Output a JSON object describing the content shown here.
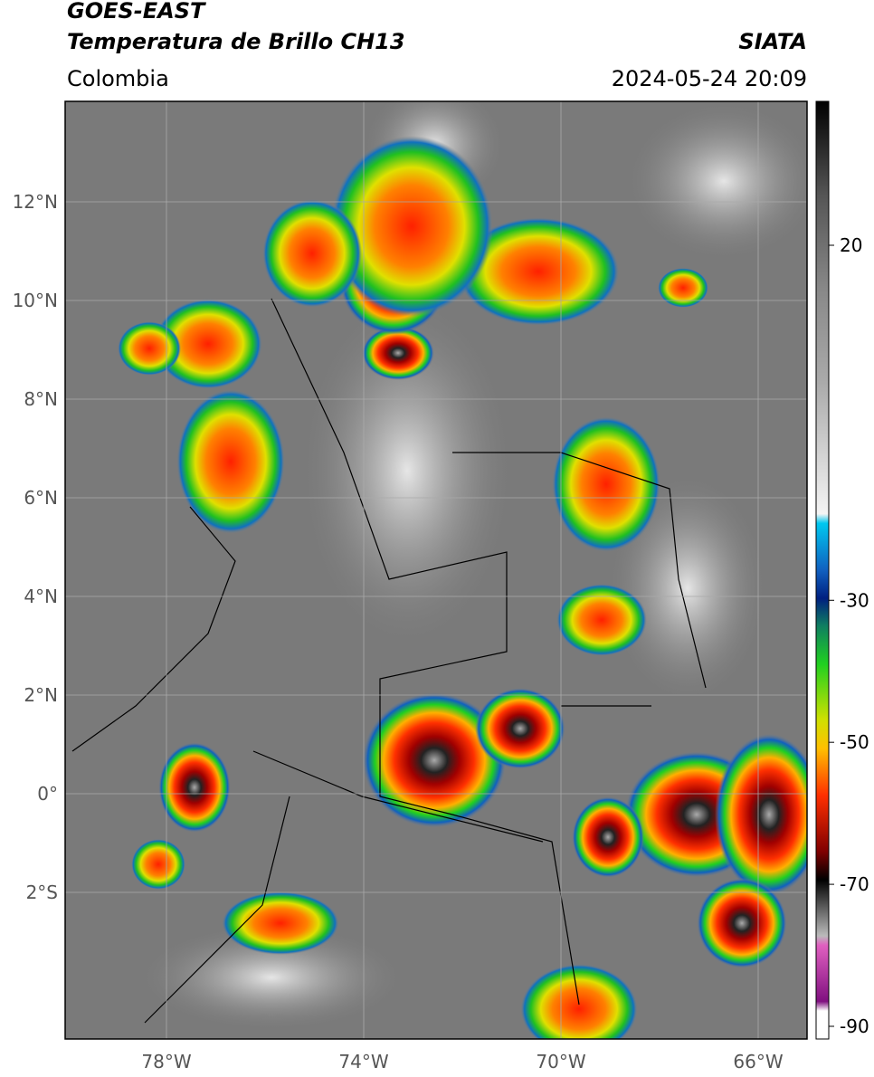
{
  "header": {
    "title_line1": "GOES-EAST",
    "title_line2": "Temperatura de Brillo CH13",
    "source": "SIATA",
    "region": "Colombia",
    "timestamp": "2024-05-24 20:09"
  },
  "map": {
    "lat_ticks": [
      {
        "value": 12,
        "label": "12°N"
      },
      {
        "value": 10,
        "label": "10°N"
      },
      {
        "value": 8,
        "label": "8°N"
      },
      {
        "value": 6,
        "label": "6°N"
      },
      {
        "value": 4,
        "label": "4°N"
      },
      {
        "value": 2,
        "label": "2°N"
      },
      {
        "value": 0,
        "label": "0°"
      },
      {
        "value": -2,
        "label": "2°S"
      }
    ],
    "lon_ticks": [
      {
        "value": -78,
        "label": "78°W"
      },
      {
        "value": -74,
        "label": "74°W"
      },
      {
        "value": -70,
        "label": "70°W"
      },
      {
        "value": -66,
        "label": "66°W"
      }
    ]
  },
  "colorbar": {
    "ticks": [
      20,
      -30,
      -50,
      -70,
      -90
    ]
  }
}
